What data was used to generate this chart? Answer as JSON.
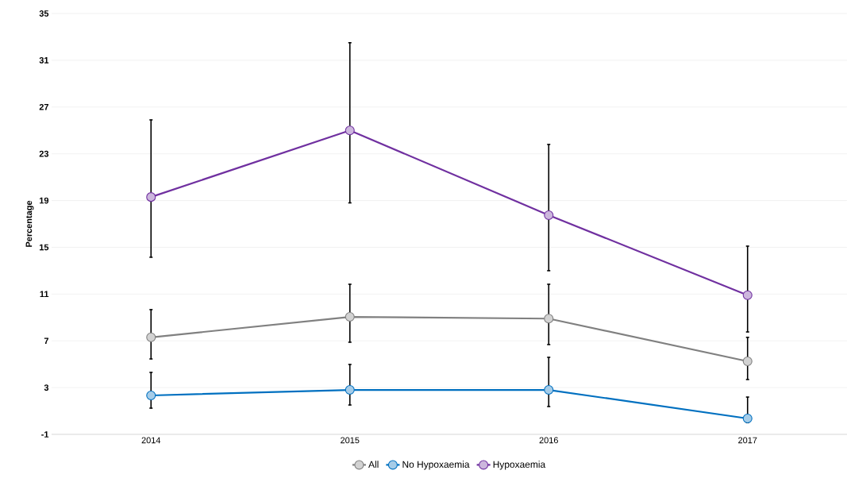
{
  "chart_data": {
    "type": "line",
    "ylabel": "Percentage",
    "categories": [
      "2014",
      "2015",
      "2016",
      "2017"
    ],
    "series": [
      {
        "name": "All",
        "color": "#808080",
        "values": [
          7.3,
          9.05,
          8.9,
          5.25
        ],
        "errors": [
          [
            5.45,
            9.67
          ],
          [
            6.88,
            11.84
          ],
          [
            6.68,
            11.84
          ],
          [
            3.69,
            7.3
          ]
        ]
      },
      {
        "name": "No Hypoxaemia",
        "color": "#0070c0",
        "values": [
          2.33,
          2.8,
          2.8,
          0.36
        ],
        "errors": [
          [
            1.24,
            4.3
          ],
          [
            1.51,
            4.98
          ],
          [
            1.38,
            5.59
          ],
          [
            0.0,
            2.19
          ]
        ]
      },
      {
        "name": "Hypoxaemia",
        "color": "#7030a0",
        "values": [
          19.3,
          25.0,
          17.75,
          10.9
        ],
        "errors": [
          [
            14.15,
            25.9
          ],
          [
            18.8,
            32.5
          ],
          [
            13.0,
            23.8
          ],
          [
            7.76,
            15.1
          ]
        ]
      }
    ],
    "ylim": [
      -1,
      35
    ],
    "yticks": [
      -1,
      3,
      7,
      11,
      15,
      19,
      23,
      27,
      31,
      35
    ],
    "grid": "y",
    "legend": "bottom",
    "marker": "circle",
    "line_style": "solid"
  }
}
